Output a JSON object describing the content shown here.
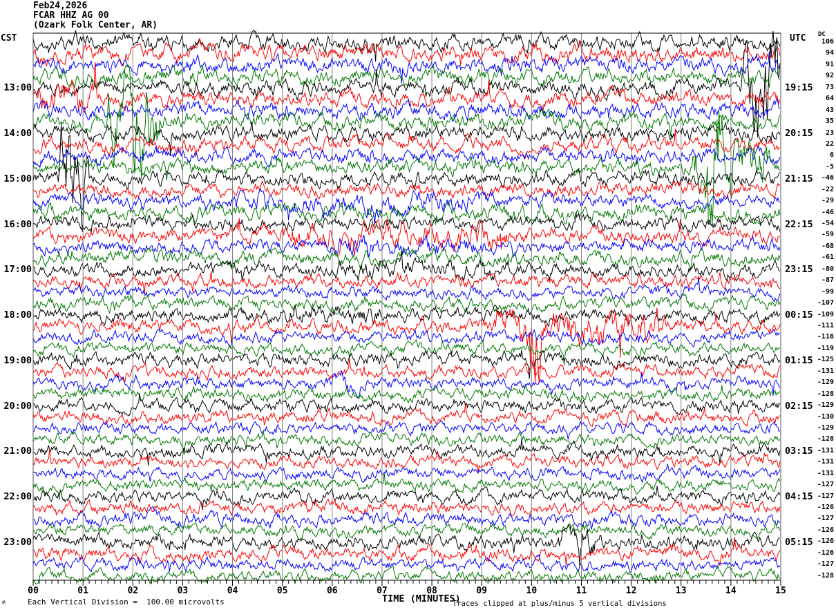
{
  "header": {
    "date": "Feb24,2026",
    "station": "FCAR HHZ AG 00",
    "location": "(Ozark Folk Center, AR)",
    "left_tz": "CST",
    "right_tz": "UTC",
    "dc_label": "DC"
  },
  "footer": {
    "scale_note": "Each Vertical Division =  100.00 microvolts",
    "axis_title": "TIME (MINUTES)",
    "clip_note": "Traces clipped at plus/minus 5 vertical divisions",
    "corner_mark": "ʍ"
  },
  "colors": {
    "black": "#000000",
    "red": "#ff0000",
    "blue": "#0000ff",
    "green": "#007700",
    "grid": "#808080",
    "frame": "#000000",
    "background": "#ffffff"
  },
  "chart_data": {
    "type": "line",
    "subtype": "helicorder-seismogram",
    "title": "FCAR HHZ AG 00 (Ozark Folk Center, AR) Feb24,2026",
    "xlabel": "TIME (MINUTES)",
    "x_axis": {
      "min": 0,
      "max": 15,
      "tick_labels": [
        "00",
        "01",
        "02",
        "03",
        "04",
        "05",
        "06",
        "07",
        "08",
        "09",
        "10",
        "11",
        "12",
        "13",
        "14",
        "15"
      ],
      "minor_ticks_per_major": 7
    },
    "left_time_axis": "CST",
    "right_time_axis": "UTC",
    "clip_divisions": 5,
    "microvolts_per_division": 100.0,
    "rows": [
      {
        "cst": null,
        "utc": null,
        "color": "black",
        "dc": 106,
        "amp": 8.0,
        "events": []
      },
      {
        "cst": null,
        "utc": null,
        "color": "red",
        "dc": 94,
        "amp": 8.0,
        "events": []
      },
      {
        "cst": null,
        "utc": null,
        "color": "blue",
        "dc": 91,
        "amp": 7.5,
        "events": []
      },
      {
        "cst": null,
        "utc": null,
        "color": "green",
        "dc": 92,
        "amp": 7.5,
        "events": []
      },
      {
        "cst": "13:00",
        "utc": "19:15",
        "color": "black",
        "dc": 73,
        "amp": 7.5,
        "events": [
          [
            14.3,
            15.0,
            40
          ]
        ]
      },
      {
        "cst": null,
        "utc": null,
        "color": "red",
        "dc": 64,
        "amp": 7.5,
        "events": [
          [
            0.0,
            1.2,
            8
          ]
        ]
      },
      {
        "cst": null,
        "utc": null,
        "color": "blue",
        "dc": 43,
        "amp": 7.5,
        "events": []
      },
      {
        "cst": null,
        "utc": null,
        "color": "green",
        "dc": 35,
        "amp": 7.5,
        "events": [
          [
            1.55,
            2.45,
            40
          ]
        ]
      },
      {
        "cst": "14:00",
        "utc": "20:15",
        "color": "black",
        "dc": 23,
        "amp": 7.0,
        "events": []
      },
      {
        "cst": null,
        "utc": null,
        "color": "red",
        "dc": 22,
        "amp": 7.0,
        "events": []
      },
      {
        "cst": null,
        "utc": null,
        "color": "blue",
        "dc": 6,
        "amp": 7.0,
        "events": []
      },
      {
        "cst": null,
        "utc": null,
        "color": "green",
        "dc": -5,
        "amp": 7.0,
        "events": [
          [
            13.3,
            14.7,
            22
          ],
          [
            13.58,
            13.75,
            70
          ]
        ]
      },
      {
        "cst": "15:00",
        "utc": "21:15",
        "color": "black",
        "dc": -46,
        "amp": 7.0,
        "events": [
          [
            0.6,
            1.05,
            45
          ]
        ]
      },
      {
        "cst": null,
        "utc": null,
        "color": "red",
        "dc": -22,
        "amp": 6.5,
        "events": []
      },
      {
        "cst": null,
        "utc": null,
        "color": "blue",
        "dc": -29,
        "amp": 6.5,
        "events": [
          [
            4.0,
            9.0,
            4
          ]
        ]
      },
      {
        "cst": null,
        "utc": null,
        "color": "green",
        "dc": -46,
        "amp": 7.5,
        "events": []
      },
      {
        "cst": "16:00",
        "utc": "22:15",
        "color": "black",
        "dc": -54,
        "amp": 6.5,
        "events": []
      },
      {
        "cst": null,
        "utc": null,
        "color": "red",
        "dc": -59,
        "amp": 7.0,
        "events": [
          [
            5.0,
            9.5,
            6
          ]
        ]
      },
      {
        "cst": null,
        "utc": null,
        "color": "blue",
        "dc": -68,
        "amp": 6.5,
        "events": [
          [
            6.0,
            9.0,
            4
          ]
        ]
      },
      {
        "cst": null,
        "utc": null,
        "color": "green",
        "dc": -61,
        "amp": 7.0,
        "events": []
      },
      {
        "cst": "17:00",
        "utc": "23:15",
        "color": "black",
        "dc": -80,
        "amp": 6.5,
        "events": [
          [
            6.0,
            9.5,
            3
          ]
        ]
      },
      {
        "cst": null,
        "utc": null,
        "color": "red",
        "dc": -87,
        "amp": 6.0,
        "events": []
      },
      {
        "cst": null,
        "utc": null,
        "color": "blue",
        "dc": -99,
        "amp": 5.5,
        "events": []
      },
      {
        "cst": null,
        "utc": null,
        "color": "green",
        "dc": -107,
        "amp": 6.0,
        "events": []
      },
      {
        "cst": "18:00",
        "utc": "00:15",
        "color": "black",
        "dc": -109,
        "amp": 6.5,
        "events": [
          [
            5.0,
            7.0,
            3
          ]
        ]
      },
      {
        "cst": null,
        "utc": null,
        "color": "red",
        "dc": -111,
        "amp": 6.5,
        "events": [
          [
            9.3,
            12.6,
            10
          ],
          [
            10.0,
            10.15,
            32
          ]
        ]
      },
      {
        "cst": null,
        "utc": null,
        "color": "blue",
        "dc": -116,
        "amp": 5.5,
        "events": []
      },
      {
        "cst": null,
        "utc": null,
        "color": "green",
        "dc": -119,
        "amp": 5.5,
        "events": []
      },
      {
        "cst": "19:00",
        "utc": "01:15",
        "color": "black",
        "dc": -125,
        "amp": 6.5,
        "events": []
      },
      {
        "cst": null,
        "utc": null,
        "color": "red",
        "dc": -131,
        "amp": 6.0,
        "events": []
      },
      {
        "cst": null,
        "utc": null,
        "color": "blue",
        "dc": -129,
        "amp": 5.5,
        "events": [
          [
            6.0,
            6.5,
            6
          ]
        ]
      },
      {
        "cst": null,
        "utc": null,
        "color": "green",
        "dc": -128,
        "amp": 5.5,
        "events": []
      },
      {
        "cst": "20:00",
        "utc": "02:15",
        "color": "black",
        "dc": -129,
        "amp": 6.0,
        "events": []
      },
      {
        "cst": null,
        "utc": null,
        "color": "red",
        "dc": -130,
        "amp": 6.0,
        "events": []
      },
      {
        "cst": null,
        "utc": null,
        "color": "blue",
        "dc": -129,
        "amp": 5.5,
        "events": []
      },
      {
        "cst": null,
        "utc": null,
        "color": "green",
        "dc": -128,
        "amp": 5.5,
        "events": []
      },
      {
        "cst": "21:00",
        "utc": "03:15",
        "color": "black",
        "dc": -131,
        "amp": 6.0,
        "events": []
      },
      {
        "cst": null,
        "utc": null,
        "color": "red",
        "dc": -131,
        "amp": 5.5,
        "events": []
      },
      {
        "cst": null,
        "utc": null,
        "color": "blue",
        "dc": -131,
        "amp": 5.5,
        "events": []
      },
      {
        "cst": null,
        "utc": null,
        "color": "green",
        "dc": -127,
        "amp": 5.5,
        "events": []
      },
      {
        "cst": "22:00",
        "utc": "04:15",
        "color": "black",
        "dc": -127,
        "amp": 6.0,
        "events": []
      },
      {
        "cst": null,
        "utc": null,
        "color": "red",
        "dc": -126,
        "amp": 6.0,
        "events": []
      },
      {
        "cst": null,
        "utc": null,
        "color": "blue",
        "dc": -127,
        "amp": 6.0,
        "events": []
      },
      {
        "cst": null,
        "utc": null,
        "color": "green",
        "dc": -126,
        "amp": 5.5,
        "events": []
      },
      {
        "cst": "23:00",
        "utc": "05:15",
        "color": "black",
        "dc": -126,
        "amp": 6.5,
        "events": [
          [
            10.6,
            11.3,
            6
          ]
        ]
      },
      {
        "cst": null,
        "utc": null,
        "color": "red",
        "dc": -126,
        "amp": 6.5,
        "events": []
      },
      {
        "cst": null,
        "utc": null,
        "color": "blue",
        "dc": -127,
        "amp": 5.5,
        "events": []
      },
      {
        "cst": null,
        "utc": null,
        "color": "green",
        "dc": -128,
        "amp": 5.5,
        "events": []
      }
    ]
  }
}
